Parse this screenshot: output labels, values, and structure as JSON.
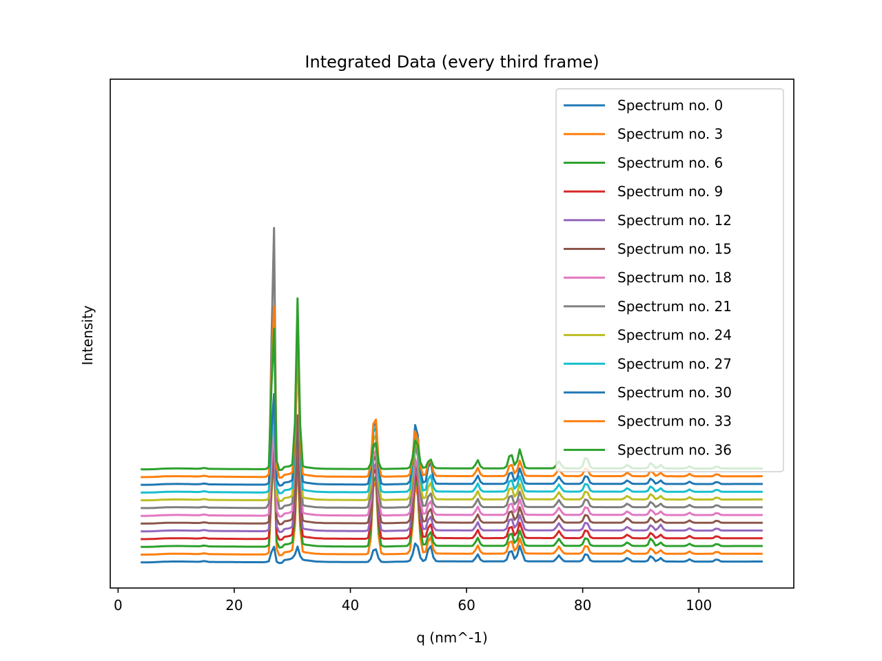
{
  "chart_data": {
    "type": "line",
    "title": "Integrated Data (every third frame)",
    "xlabel": "q (nm^-1)",
    "ylabel": "Intensity",
    "xlim": [
      -1.35,
      116.35
    ],
    "xticks": [
      0,
      20,
      40,
      60,
      80,
      100
    ],
    "yticks": [],
    "grid": false,
    "legend_position": "top-right",
    "colors": [
      "#1f77b4",
      "#ff7f0e",
      "#2ca02c",
      "#d62728",
      "#9467bd",
      "#8c564b",
      "#e377c2",
      "#7f7f7f",
      "#bcbd22",
      "#17becf",
      "#1f77b4",
      "#ff7f0e",
      "#2ca02c"
    ],
    "series_profile": {
      "q_range": [
        3.9,
        111.0
      ],
      "baseline": [
        [
          3.9,
          0.0
        ],
        [
          5.0,
          0.0
        ],
        [
          6.0,
          0.2
        ],
        [
          8.0,
          1.2
        ],
        [
          10.0,
          1.5
        ],
        [
          12.0,
          1.3
        ],
        [
          14.0,
          0.9
        ],
        [
          14.9,
          2.5
        ],
        [
          15.5,
          0.8
        ],
        [
          18.0,
          0.6
        ],
        [
          22.0,
          0.3
        ],
        [
          25.0,
          0.2
        ],
        [
          26.0,
          1.0
        ],
        [
          28.0,
          3.0
        ],
        [
          29.5,
          5.0
        ],
        [
          30.2,
          8.0
        ],
        [
          32.0,
          4.0
        ],
        [
          34.0,
          1.5
        ],
        [
          36.0,
          0.8
        ],
        [
          42.0,
          0.5
        ],
        [
          46.0,
          0.6
        ],
        [
          50.0,
          1.5
        ],
        [
          55.0,
          1.8
        ],
        [
          60.0,
          1.5
        ],
        [
          70.0,
          1.8
        ],
        [
          80.0,
          1.6
        ],
        [
          90.0,
          1.5
        ],
        [
          100.0,
          1.3
        ],
        [
          111.0,
          1.4
        ]
      ],
      "peak_positions": [
        26.7,
        30.9,
        44.2,
        51.3,
        53.7,
        61.9,
        67.6,
        69.2,
        75.9,
        80.6,
        87.7,
        91.8,
        93.4,
        98.4,
        103.1
      ]
    },
    "series": [
      {
        "name": "Spectrum no. 0",
        "offset": 0,
        "peaks": [
          [
            26.7,
            28,
            0.28
          ],
          [
            30.9,
            20,
            0.28
          ],
          [
            44.2,
            24,
            0.4
          ],
          [
            51.3,
            32,
            0.42
          ],
          [
            53.7,
            28,
            0.35
          ],
          [
            61.9,
            12,
            0.3
          ],
          [
            67.6,
            20,
            0.35
          ],
          [
            69.2,
            26,
            0.35
          ],
          [
            75.9,
            10,
            0.35
          ],
          [
            80.6,
            14,
            0.35
          ],
          [
            87.7,
            6,
            0.35
          ],
          [
            91.8,
            10,
            0.3
          ],
          [
            93.4,
            6,
            0.3
          ],
          [
            98.4,
            4,
            0.3
          ],
          [
            103.1,
            4,
            0.3
          ]
        ]
      },
      {
        "name": "Spectrum no. 3",
        "offset": 13,
        "peaks": [
          [
            26.7,
            200,
            0.25
          ],
          [
            30.9,
            160,
            0.27
          ],
          [
            44.2,
            140,
            0.38
          ],
          [
            51.3,
            125,
            0.42
          ],
          [
            53.7,
            30,
            0.35
          ],
          [
            61.9,
            14,
            0.3
          ],
          [
            67.6,
            24,
            0.35
          ],
          [
            69.2,
            26,
            0.35
          ],
          [
            75.9,
            12,
            0.35
          ],
          [
            80.6,
            15,
            0.35
          ],
          [
            87.7,
            6,
            0.35
          ],
          [
            91.8,
            10,
            0.3
          ],
          [
            93.4,
            6,
            0.3
          ],
          [
            98.4,
            4,
            0.3
          ],
          [
            103.1,
            4,
            0.3
          ]
        ]
      },
      {
        "name": "Spectrum no. 6",
        "offset": 26,
        "peaks": [
          [
            26.7,
            190,
            0.25
          ],
          [
            30.9,
            165,
            0.27
          ],
          [
            44.2,
            135,
            0.38
          ],
          [
            51.3,
            125,
            0.42
          ],
          [
            53.7,
            25,
            0.35
          ],
          [
            61.9,
            14,
            0.3
          ],
          [
            67.6,
            24,
            0.35
          ],
          [
            69.2,
            26,
            0.35
          ],
          [
            75.9,
            12,
            0.35
          ],
          [
            80.6,
            15,
            0.35
          ],
          [
            87.7,
            6,
            0.35
          ],
          [
            91.8,
            14,
            0.3
          ],
          [
            93.4,
            6,
            0.3
          ],
          [
            98.4,
            4,
            0.3
          ],
          [
            103.1,
            4,
            0.3
          ]
        ]
      },
      {
        "name": "Spectrum no. 9",
        "offset": 39,
        "peaks": [
          [
            26.7,
            195,
            0.25
          ],
          [
            30.9,
            170,
            0.27
          ],
          [
            44.2,
            135,
            0.38
          ],
          [
            51.3,
            120,
            0.42
          ],
          [
            53.7,
            25,
            0.35
          ],
          [
            61.9,
            14,
            0.3
          ],
          [
            67.6,
            22,
            0.35
          ],
          [
            69.2,
            26,
            0.35
          ],
          [
            75.9,
            12,
            0.35
          ],
          [
            80.6,
            15,
            0.35
          ],
          [
            87.7,
            6,
            0.35
          ],
          [
            91.8,
            10,
            0.3
          ],
          [
            93.4,
            6,
            0.3
          ],
          [
            98.4,
            4,
            0.3
          ],
          [
            103.1,
            4,
            0.3
          ]
        ]
      },
      {
        "name": "Spectrum no. 12",
        "offset": 52,
        "peaks": [
          [
            26.7,
            185,
            0.25
          ],
          [
            30.9,
            170,
            0.27
          ],
          [
            44.2,
            130,
            0.38
          ],
          [
            51.3,
            115,
            0.42
          ],
          [
            53.7,
            25,
            0.35
          ],
          [
            61.9,
            14,
            0.3
          ],
          [
            67.6,
            22,
            0.35
          ],
          [
            69.2,
            26,
            0.35
          ],
          [
            75.9,
            12,
            0.35
          ],
          [
            80.6,
            15,
            0.35
          ],
          [
            87.7,
            6,
            0.35
          ],
          [
            91.8,
            10,
            0.3
          ],
          [
            93.4,
            10,
            0.3
          ],
          [
            98.4,
            4,
            0.3
          ],
          [
            103.1,
            4,
            0.3
          ]
        ]
      },
      {
        "name": "Spectrum no. 15",
        "offset": 65,
        "peaks": [
          [
            26.7,
            180,
            0.25
          ],
          [
            30.9,
            175,
            0.27
          ],
          [
            44.2,
            130,
            0.38
          ],
          [
            51.3,
            110,
            0.42
          ],
          [
            53.7,
            25,
            0.35
          ],
          [
            61.9,
            14,
            0.3
          ],
          [
            67.6,
            22,
            0.35
          ],
          [
            69.2,
            26,
            0.35
          ],
          [
            75.9,
            12,
            0.35
          ],
          [
            80.6,
            15,
            0.35
          ],
          [
            87.7,
            8,
            0.35
          ],
          [
            91.8,
            10,
            0.3
          ],
          [
            93.4,
            6,
            0.3
          ],
          [
            98.4,
            4,
            0.3
          ],
          [
            103.1,
            4,
            0.3
          ]
        ]
      },
      {
        "name": "Spectrum no. 18",
        "offset": 78,
        "peaks": [
          [
            26.7,
            175,
            0.25
          ],
          [
            30.9,
            335,
            0.27
          ],
          [
            44.2,
            125,
            0.38
          ],
          [
            51.3,
            100,
            0.42
          ],
          [
            53.7,
            25,
            0.35
          ],
          [
            61.9,
            14,
            0.3
          ],
          [
            67.6,
            22,
            0.35
          ],
          [
            69.2,
            26,
            0.35
          ],
          [
            75.9,
            12,
            0.35
          ],
          [
            80.6,
            15,
            0.35
          ],
          [
            87.7,
            6,
            0.35
          ],
          [
            91.8,
            10,
            0.3
          ],
          [
            93.4,
            6,
            0.3
          ],
          [
            98.4,
            4,
            0.3
          ],
          [
            103.1,
            4,
            0.3
          ]
        ]
      },
      {
        "name": "Spectrum no. 21",
        "offset": 91,
        "peaks": [
          [
            26.7,
            560,
            0.25
          ],
          [
            30.9,
            300,
            0.27
          ],
          [
            44.2,
            125,
            0.38
          ],
          [
            51.3,
            110,
            0.42
          ],
          [
            53.7,
            25,
            0.35
          ],
          [
            61.9,
            14,
            0.3
          ],
          [
            67.6,
            22,
            0.35
          ],
          [
            69.2,
            26,
            0.35
          ],
          [
            75.9,
            12,
            0.35
          ],
          [
            80.6,
            15,
            0.35
          ],
          [
            87.7,
            6,
            0.35
          ],
          [
            91.8,
            10,
            0.3
          ],
          [
            93.4,
            6,
            0.3
          ],
          [
            98.4,
            4,
            0.3
          ],
          [
            103.1,
            4,
            0.3
          ]
        ]
      },
      {
        "name": "Spectrum no. 24",
        "offset": 104,
        "peaks": [
          [
            26.7,
            200,
            0.25
          ],
          [
            30.9,
            300,
            0.27
          ],
          [
            44.2,
            125,
            0.38
          ],
          [
            51.3,
            110,
            0.42
          ],
          [
            53.7,
            30,
            0.35
          ],
          [
            61.9,
            14,
            0.3
          ],
          [
            67.6,
            22,
            0.35
          ],
          [
            69.2,
            26,
            0.35
          ],
          [
            75.9,
            12,
            0.35
          ],
          [
            80.6,
            15,
            0.35
          ],
          [
            87.7,
            6,
            0.35
          ],
          [
            91.8,
            10,
            0.3
          ],
          [
            93.4,
            6,
            0.3
          ],
          [
            98.4,
            4,
            0.3
          ],
          [
            103.1,
            4,
            0.3
          ]
        ]
      },
      {
        "name": "Spectrum no. 27",
        "offset": 117,
        "peaks": [
          [
            26.7,
            180,
            0.25
          ],
          [
            30.9,
            260,
            0.27
          ],
          [
            44.2,
            125,
            0.38
          ],
          [
            51.3,
            110,
            0.42
          ],
          [
            53.7,
            30,
            0.35
          ],
          [
            61.9,
            14,
            0.3
          ],
          [
            67.6,
            22,
            0.35
          ],
          [
            69.2,
            26,
            0.35
          ],
          [
            75.9,
            12,
            0.35
          ],
          [
            80.6,
            15,
            0.35
          ],
          [
            87.7,
            6,
            0.35
          ],
          [
            91.8,
            10,
            0.3
          ],
          [
            93.4,
            6,
            0.3
          ],
          [
            98.4,
            4,
            0.3
          ],
          [
            103.1,
            4,
            0.3
          ]
        ]
      },
      {
        "name": "Spectrum no. 30",
        "offset": 130,
        "peaks": [
          [
            26.7,
            180,
            0.25
          ],
          [
            30.9,
            250,
            0.27
          ],
          [
            44.2,
            120,
            0.38
          ],
          [
            51.3,
            105,
            0.42
          ],
          [
            53.7,
            40,
            0.35
          ],
          [
            61.9,
            14,
            0.3
          ],
          [
            67.6,
            22,
            0.35
          ],
          [
            69.2,
            26,
            0.35
          ],
          [
            75.9,
            12,
            0.35
          ],
          [
            80.6,
            15,
            0.35
          ],
          [
            87.7,
            6,
            0.35
          ],
          [
            91.8,
            10,
            0.3
          ],
          [
            93.4,
            6,
            0.3
          ],
          [
            98.4,
            4,
            0.3
          ],
          [
            103.1,
            4,
            0.3
          ]
        ]
      },
      {
        "name": "Spectrum no. 33",
        "offset": 143,
        "peaks": [
          [
            26.7,
            340,
            0.25
          ],
          [
            30.9,
            230,
            0.27
          ],
          [
            44.2,
            110,
            0.38
          ],
          [
            51.3,
            80,
            0.42
          ],
          [
            53.7,
            30,
            0.35
          ],
          [
            61.9,
            14,
            0.3
          ],
          [
            67.6,
            22,
            0.35
          ],
          [
            69.2,
            26,
            0.35
          ],
          [
            75.9,
            12,
            0.35
          ],
          [
            80.6,
            15,
            0.35
          ],
          [
            87.7,
            6,
            0.35
          ],
          [
            91.8,
            10,
            0.3
          ],
          [
            93.4,
            6,
            0.3
          ],
          [
            98.4,
            4,
            0.3
          ],
          [
            103.1,
            4,
            0.3
          ]
        ]
      },
      {
        "name": "Spectrum no. 36",
        "offset": 156,
        "peaks": [
          [
            26.7,
            280,
            0.25
          ],
          [
            30.9,
            280,
            0.27
          ],
          [
            44.2,
            50,
            0.38
          ],
          [
            51.3,
            50,
            0.42
          ],
          [
            53.7,
            16,
            0.35
          ],
          [
            61.9,
            14,
            0.3
          ],
          [
            67.6,
            26,
            0.35
          ],
          [
            69.2,
            32,
            0.35
          ],
          [
            75.9,
            12,
            0.35
          ],
          [
            80.6,
            20,
            0.35
          ],
          [
            87.7,
            6,
            0.35
          ],
          [
            91.8,
            10,
            0.3
          ],
          [
            93.4,
            6,
            0.3
          ],
          [
            98.4,
            4,
            0.3
          ],
          [
            103.1,
            4,
            0.3
          ]
        ]
      }
    ],
    "ylim": [
      -43,
      810
    ]
  }
}
